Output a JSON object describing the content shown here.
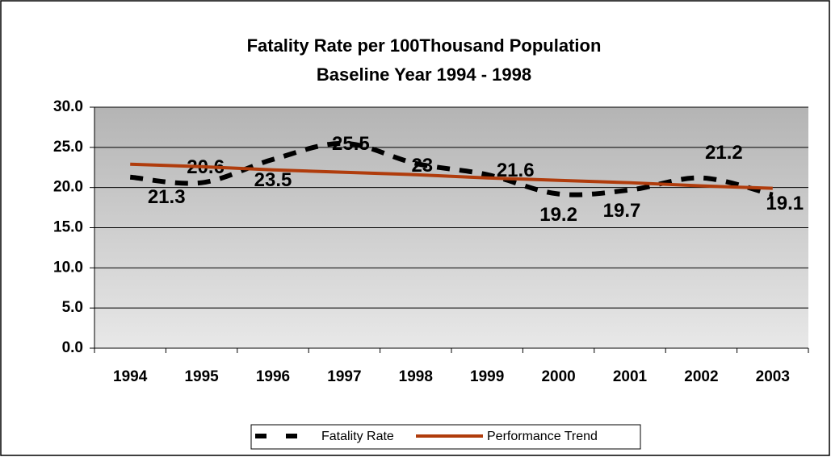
{
  "chart_data": {
    "type": "line",
    "title": "Fatality Rate per 100Thousand Population",
    "subtitle": "Baseline Year 1994 - 1998",
    "categories": [
      "1994",
      "1995",
      "1996",
      "1997",
      "1998",
      "1999",
      "2000",
      "2001",
      "2002",
      "2003"
    ],
    "series": [
      {
        "name": "Fatality Rate",
        "color": "#000000",
        "dashed": true,
        "smooth": true,
        "values": [
          21.3,
          20.6,
          23.5,
          25.5,
          23.0,
          21.6,
          19.2,
          19.7,
          21.2,
          19.1
        ]
      },
      {
        "name": "Performance Trend",
        "color": "#b03c0c",
        "dashed": false,
        "smooth": false,
        "values": [
          22.9,
          22.6,
          22.2,
          21.9,
          21.6,
          21.2,
          20.9,
          20.6,
          20.2,
          19.9
        ]
      }
    ],
    "ylim": [
      0,
      30
    ],
    "yticks": [
      {
        "value": 0,
        "label": "0.0"
      },
      {
        "value": 5,
        "label": "5.0"
      },
      {
        "value": 10,
        "label": "10.0"
      },
      {
        "value": 15,
        "label": "15.0"
      },
      {
        "value": 20,
        "label": "20.0"
      },
      {
        "value": 25,
        "label": "25.0"
      },
      {
        "value": 30,
        "label": "30.0"
      }
    ],
    "grid": true,
    "legend": "bottom"
  }
}
